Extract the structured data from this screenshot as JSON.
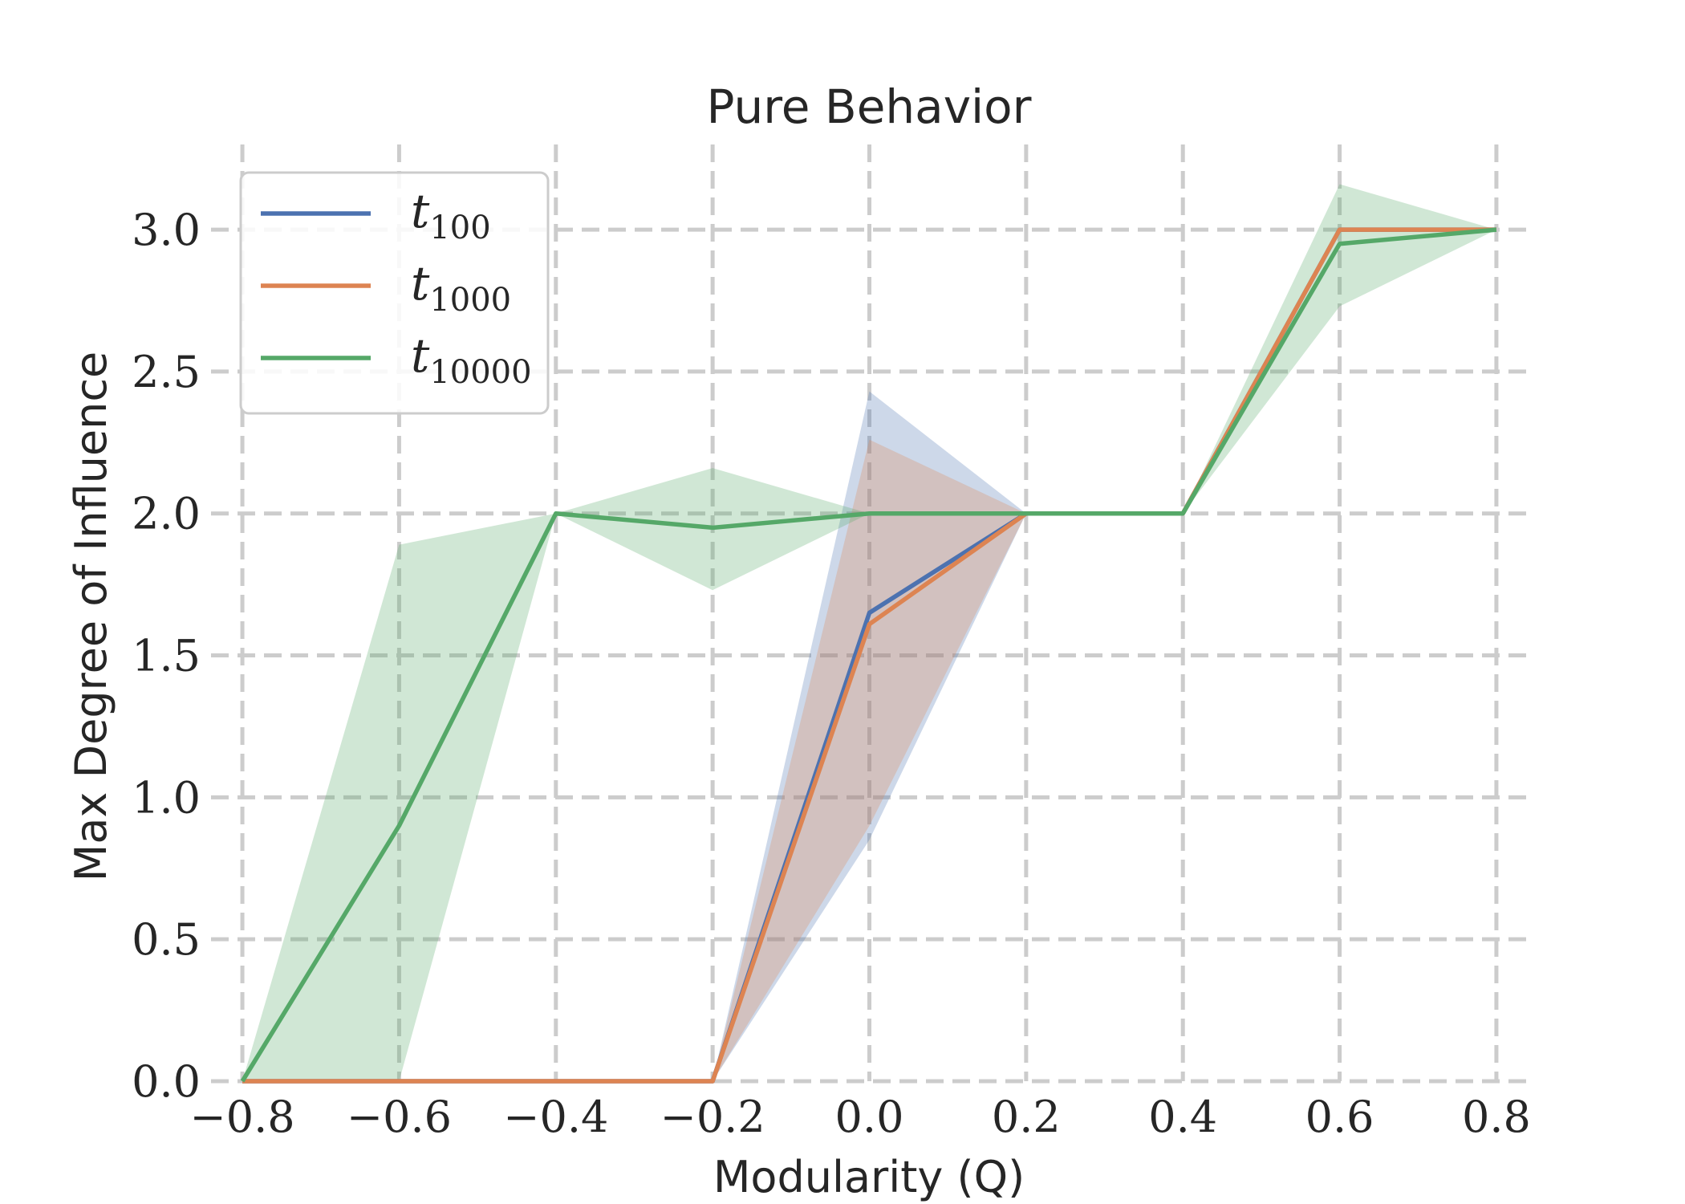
{
  "chart_data": {
    "type": "line",
    "title": "Pure Behavior",
    "xlabel": "Modularity (Q)",
    "ylabel": "Max Degree of Influence",
    "x": [
      -0.8,
      -0.6,
      -0.4,
      -0.2,
      0.0,
      0.2,
      0.4,
      0.6,
      0.8
    ],
    "xlim": [
      -0.84,
      0.84
    ],
    "ylim": [
      0.0,
      3.3
    ],
    "x_ticks": [
      "−0.8",
      "−0.6",
      "−0.4",
      "−0.2",
      "0.0",
      "0.2",
      "0.4",
      "0.6",
      "0.8"
    ],
    "y_ticks": [
      "0.0",
      "0.5",
      "1.0",
      "1.5",
      "2.0",
      "2.5",
      "3.0"
    ],
    "grid": true,
    "legend_position": "top-left",
    "series": [
      {
        "name": "t",
        "subscript": "100",
        "color": "#4c72b0",
        "values": [
          0,
          0,
          0,
          0,
          1.65,
          2.0,
          2.0,
          3.0,
          3.0
        ],
        "lower": [
          0,
          0,
          0,
          0,
          0.85,
          2.0,
          2.0,
          3.0,
          3.0
        ],
        "upper": [
          0,
          0,
          0,
          0,
          2.43,
          2.0,
          2.0,
          3.0,
          3.0
        ]
      },
      {
        "name": "t",
        "subscript": "1000",
        "color": "#dd8452",
        "values": [
          0,
          0,
          0,
          0,
          1.61,
          2.0,
          2.0,
          3.0,
          3.0
        ],
        "lower": [
          0,
          0,
          0,
          0,
          0.9,
          2.0,
          2.0,
          3.0,
          3.0
        ],
        "upper": [
          0,
          0,
          0,
          0,
          2.26,
          2.0,
          2.0,
          3.0,
          3.0
        ]
      },
      {
        "name": "t",
        "subscript": "10000",
        "color": "#55a868",
        "values": [
          0,
          0.9,
          2.0,
          1.95,
          2.0,
          2.0,
          2.0,
          2.95,
          3.0
        ],
        "lower": [
          0,
          0,
          2.0,
          1.73,
          2.0,
          2.0,
          2.0,
          2.73,
          3.0
        ],
        "upper": [
          0,
          1.89,
          2.0,
          2.16,
          2.0,
          2.0,
          2.0,
          3.16,
          3.0
        ]
      }
    ]
  }
}
